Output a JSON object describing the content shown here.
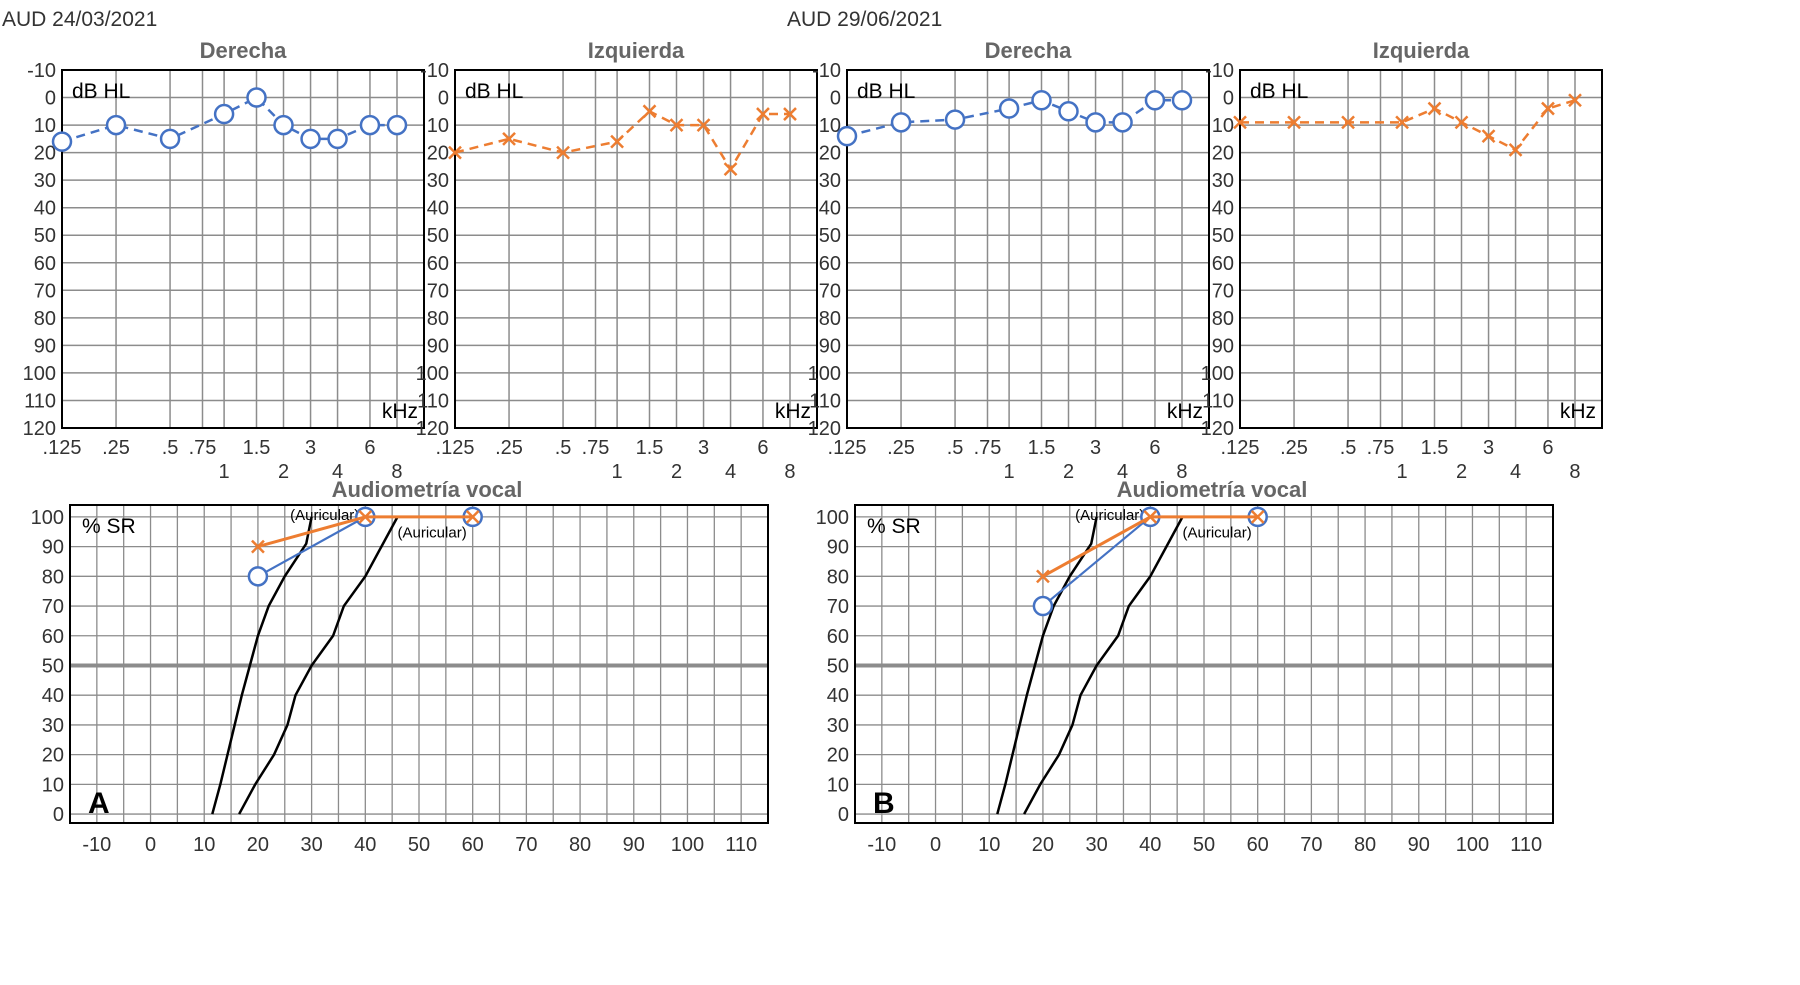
{
  "colors": {
    "right": "#4472c4",
    "left": "#ed7d31",
    "grid": "#8c8c8c",
    "frame": "#000000",
    "text": "#333333",
    "title": "#666666",
    "refline": "#8c8c8c"
  },
  "panels": [
    {
      "label": "AUD 24/03/2021",
      "letter": "A",
      "audiograms": [
        {
          "title": "Derecha",
          "side": "right",
          "ylabel": "dB HL",
          "unit": "kHz",
          "y_ticks": [
            "-10",
            "0",
            "10",
            "20",
            "30",
            "40",
            "50",
            "60",
            "70",
            "80",
            "90",
            "100",
            "110",
            "120"
          ],
          "x_ticks_top": [
            ".125",
            ".25",
            ".5",
            ".75",
            "1.5",
            "3",
            "6"
          ],
          "x_ticks_bottom": [
            "1",
            "2",
            "4",
            "8"
          ],
          "freqs": [
            0.125,
            0.25,
            0.5,
            1,
            1.5,
            2,
            3,
            4,
            6,
            8
          ],
          "values": [
            16,
            10,
            15,
            6,
            0,
            10,
            15,
            15,
            10,
            10
          ]
        },
        {
          "title": "Izquierda",
          "side": "left",
          "ylabel": "dB HL",
          "unit": "kHz",
          "y_ticks": [
            "-10",
            "0",
            "10",
            "20",
            "30",
            "40",
            "50",
            "60",
            "70",
            "80",
            "90",
            "100",
            "110",
            "120"
          ],
          "x_ticks_top": [
            ".125",
            ".25",
            ".5",
            ".75",
            "1.5",
            "3",
            "6"
          ],
          "x_ticks_bottom": [
            "1",
            "2",
            "4",
            "8"
          ],
          "freqs": [
            0.125,
            0.25,
            0.5,
            1,
            1.5,
            2,
            3,
            4,
            6,
            8
          ],
          "values": [
            20,
            15,
            20,
            16,
            5,
            10,
            10,
            26,
            6,
            6
          ]
        }
      ],
      "vocal": {
        "title": "Audiometría vocal",
        "ylabel": "% SR",
        "x_ticks": [
          "-10",
          "0",
          "10",
          "20",
          "30",
          "40",
          "50",
          "60",
          "70",
          "80",
          "90",
          "100",
          "110"
        ],
        "y_ticks": [
          "0",
          "10",
          "20",
          "30",
          "40",
          "50",
          "60",
          "70",
          "80",
          "90",
          "100"
        ],
        "ref_label": "(Auricular)",
        "right_ear": {
          "x": [
            20,
            40,
            60
          ],
          "y": [
            80,
            100,
            100
          ]
        },
        "left_ear": {
          "x": [
            20,
            40,
            60
          ],
          "y": [
            90,
            100,
            100
          ]
        }
      }
    },
    {
      "label": "AUD 29/06/2021",
      "letter": "B",
      "audiograms": [
        {
          "title": "Derecha",
          "side": "right",
          "ylabel": "dB HL",
          "unit": "kHz",
          "y_ticks": [
            "-10",
            "0",
            "10",
            "20",
            "30",
            "40",
            "50",
            "60",
            "70",
            "80",
            "90",
            "100",
            "110",
            "120"
          ],
          "x_ticks_top": [
            ".125",
            ".25",
            ".5",
            ".75",
            "1.5",
            "3",
            "6"
          ],
          "x_ticks_bottom": [
            "1",
            "2",
            "4",
            "8"
          ],
          "freqs": [
            0.125,
            0.25,
            0.5,
            1,
            1.5,
            2,
            3,
            4,
            6,
            8
          ],
          "values": [
            14,
            9,
            8,
            4,
            1,
            5,
            9,
            9,
            1,
            1
          ]
        },
        {
          "title": "Izquierda",
          "side": "left",
          "ylabel": "dB HL",
          "unit": "kHz",
          "y_ticks": [
            "-10",
            "0",
            "10",
            "20",
            "30",
            "40",
            "50",
            "60",
            "70",
            "80",
            "90",
            "100",
            "110",
            "120"
          ],
          "x_ticks_top": [
            ".125",
            ".25",
            ".5",
            ".75",
            "1.5",
            "3",
            "6"
          ],
          "x_ticks_bottom": [
            "1",
            "2",
            "4",
            "8"
          ],
          "freqs": [
            0.125,
            0.25,
            0.5,
            1,
            1.5,
            2,
            3,
            4,
            6,
            8
          ],
          "values": [
            9,
            9,
            9,
            9,
            4,
            9,
            14,
            19,
            4,
            1
          ]
        }
      ],
      "vocal": {
        "title": "Audiometría vocal",
        "ylabel": "% SR",
        "x_ticks": [
          "-10",
          "0",
          "10",
          "20",
          "30",
          "40",
          "50",
          "60",
          "70",
          "80",
          "90",
          "100",
          "110"
        ],
        "y_ticks": [
          "0",
          "10",
          "20",
          "30",
          "40",
          "50",
          "60",
          "70",
          "80",
          "90",
          "100"
        ],
        "ref_label": "(Auricular)",
        "right_ear": {
          "x": [
            20,
            40,
            60
          ],
          "y": [
            70,
            100,
            100
          ]
        },
        "left_ear": {
          "x": [
            20,
            40,
            60
          ],
          "y": [
            80,
            100,
            100
          ]
        }
      }
    }
  ],
  "chart_data": [
    {
      "type": "line",
      "title": "Derecha",
      "panel": "AUD 24/03/2021",
      "xlabel": "kHz",
      "ylabel": "dB HL",
      "ylim": [
        -10,
        120
      ],
      "x": [
        0.125,
        0.25,
        0.5,
        1,
        1.5,
        2,
        3,
        4,
        6,
        8
      ],
      "series": [
        {
          "name": "Derecha",
          "values": [
            16,
            10,
            15,
            6,
            0,
            10,
            15,
            15,
            10,
            10
          ]
        }
      ]
    },
    {
      "type": "line",
      "title": "Izquierda",
      "panel": "AUD 24/03/2021",
      "xlabel": "kHz",
      "ylabel": "dB HL",
      "ylim": [
        -10,
        120
      ],
      "x": [
        0.125,
        0.25,
        0.5,
        1,
        1.5,
        2,
        3,
        4,
        6,
        8
      ],
      "series": [
        {
          "name": "Izquierda",
          "values": [
            20,
            15,
            20,
            16,
            5,
            10,
            10,
            26,
            6,
            6
          ]
        }
      ]
    },
    {
      "type": "line",
      "title": "Audiometría vocal",
      "panel": "A",
      "xlabel": "",
      "ylabel": "% SR",
      "xlim": [
        -10,
        110
      ],
      "ylim": [
        0,
        100
      ],
      "series": [
        {
          "name": "Derecha",
          "x": [
            20,
            40,
            60
          ],
          "values": [
            80,
            100,
            100
          ]
        },
        {
          "name": "Izquierda",
          "x": [
            20,
            40,
            60
          ],
          "values": [
            90,
            100,
            100
          ]
        }
      ]
    },
    {
      "type": "line",
      "title": "Derecha",
      "panel": "AUD 29/06/2021",
      "xlabel": "kHz",
      "ylabel": "dB HL",
      "ylim": [
        -10,
        120
      ],
      "x": [
        0.125,
        0.25,
        0.5,
        1,
        1.5,
        2,
        3,
        4,
        6,
        8
      ],
      "series": [
        {
          "name": "Derecha",
          "values": [
            14,
            9,
            8,
            4,
            1,
            5,
            9,
            9,
            1,
            1
          ]
        }
      ]
    },
    {
      "type": "line",
      "title": "Izquierda",
      "panel": "AUD 29/06/2021",
      "xlabel": "kHz",
      "ylabel": "dB HL",
      "ylim": [
        -10,
        120
      ],
      "x": [
        0.125,
        0.25,
        0.5,
        1,
        1.5,
        2,
        3,
        4,
        6,
        8
      ],
      "series": [
        {
          "name": "Izquierda",
          "values": [
            9,
            9,
            9,
            9,
            4,
            9,
            14,
            19,
            4,
            1
          ]
        }
      ]
    },
    {
      "type": "line",
      "title": "Audiometría vocal",
      "panel": "B",
      "xlabel": "",
      "ylabel": "% SR",
      "xlim": [
        -10,
        110
      ],
      "ylim": [
        0,
        100
      ],
      "series": [
        {
          "name": "Derecha",
          "x": [
            20,
            40,
            60
          ],
          "values": [
            70,
            100,
            100
          ]
        },
        {
          "name": "Izquierda",
          "x": [
            20,
            40,
            60
          ],
          "values": [
            80,
            100,
            100
          ]
        }
      ]
    }
  ]
}
